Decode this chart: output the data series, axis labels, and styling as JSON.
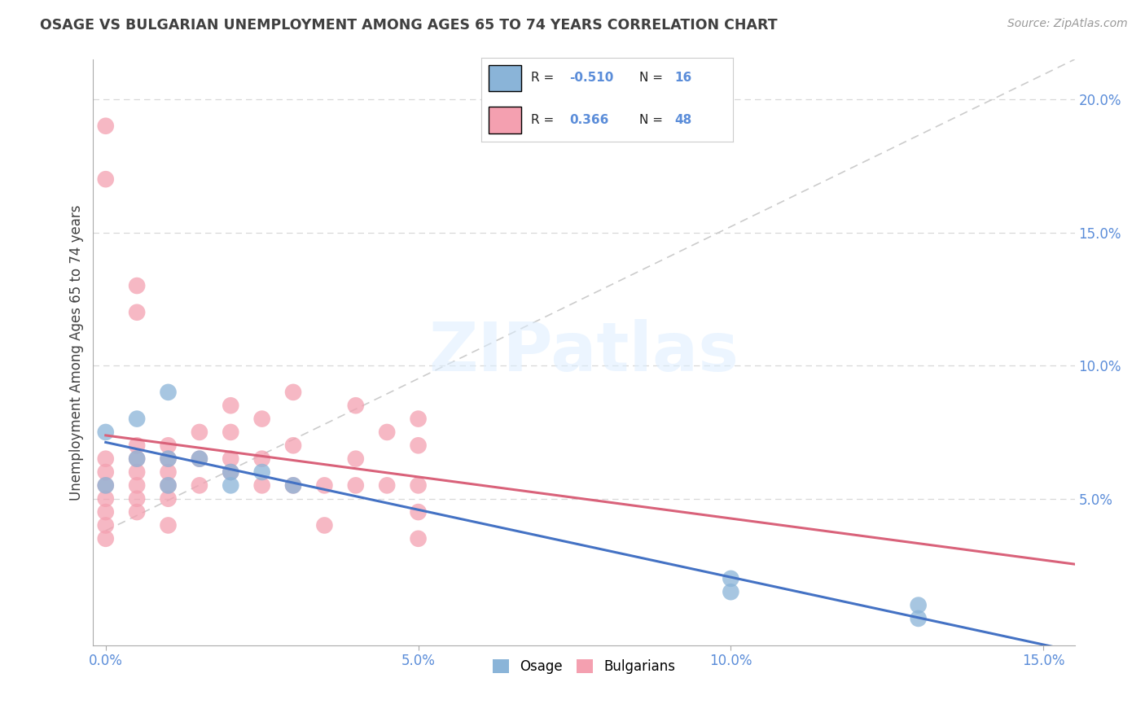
{
  "title": "OSAGE VS BULGARIAN UNEMPLOYMENT AMONG AGES 65 TO 74 YEARS CORRELATION CHART",
  "source": "Source: ZipAtlas.com",
  "ylabel": "Unemployment Among Ages 65 to 74 years",
  "xlim": [
    -0.002,
    0.155
  ],
  "ylim": [
    -0.005,
    0.215
  ],
  "xticks": [
    0.0,
    0.05,
    0.1,
    0.15
  ],
  "xtick_labels": [
    "0.0%",
    "5.0%",
    "10.0%",
    "15.0%"
  ],
  "yticks": [
    0.0,
    0.05,
    0.1,
    0.15,
    0.2
  ],
  "ytick_labels": [
    "",
    "5.0%",
    "10.0%",
    "15.0%",
    "20.0%"
  ],
  "osage_color": "#8ab4d8",
  "bulgarian_color": "#f4a0b0",
  "osage_R": -0.51,
  "osage_N": 16,
  "bulgarian_R": 0.366,
  "bulgarian_N": 48,
  "osage_x": [
    0.0,
    0.0,
    0.005,
    0.005,
    0.01,
    0.01,
    0.01,
    0.015,
    0.02,
    0.02,
    0.025,
    0.03,
    0.1,
    0.1,
    0.13,
    0.13
  ],
  "osage_y": [
    0.075,
    0.055,
    0.08,
    0.065,
    0.09,
    0.065,
    0.055,
    0.065,
    0.06,
    0.055,
    0.06,
    0.055,
    0.02,
    0.015,
    0.01,
    0.005
  ],
  "bulgarian_x": [
    0.0,
    0.0,
    0.0,
    0.0,
    0.0,
    0.0,
    0.0,
    0.005,
    0.005,
    0.005,
    0.005,
    0.005,
    0.005,
    0.01,
    0.01,
    0.01,
    0.01,
    0.01,
    0.01,
    0.015,
    0.015,
    0.015,
    0.02,
    0.02,
    0.02,
    0.02,
    0.025,
    0.025,
    0.025,
    0.03,
    0.03,
    0.03,
    0.035,
    0.035,
    0.04,
    0.04,
    0.04,
    0.045,
    0.045,
    0.05,
    0.05,
    0.05,
    0.05,
    0.05,
    0.005,
    0.005,
    0.0,
    0.0
  ],
  "bulgarian_y": [
    0.19,
    0.17,
    0.065,
    0.06,
    0.055,
    0.05,
    0.045,
    0.07,
    0.065,
    0.06,
    0.055,
    0.05,
    0.045,
    0.07,
    0.065,
    0.06,
    0.055,
    0.05,
    0.04,
    0.075,
    0.065,
    0.055,
    0.085,
    0.075,
    0.065,
    0.06,
    0.08,
    0.065,
    0.055,
    0.09,
    0.07,
    0.055,
    0.055,
    0.04,
    0.085,
    0.065,
    0.055,
    0.075,
    0.055,
    0.08,
    0.07,
    0.055,
    0.045,
    0.035,
    0.13,
    0.12,
    0.04,
    0.035
  ],
  "grid_color": "#d8d8d8",
  "background_color": "#ffffff",
  "title_color": "#404040",
  "axis_tick_color": "#5b8dd9",
  "legend_R_color": "#5b8dd9",
  "ref_line_color": "#cccccc",
  "osage_trend_color": "#4472c4",
  "bulgarian_trend_color": "#d9627a"
}
